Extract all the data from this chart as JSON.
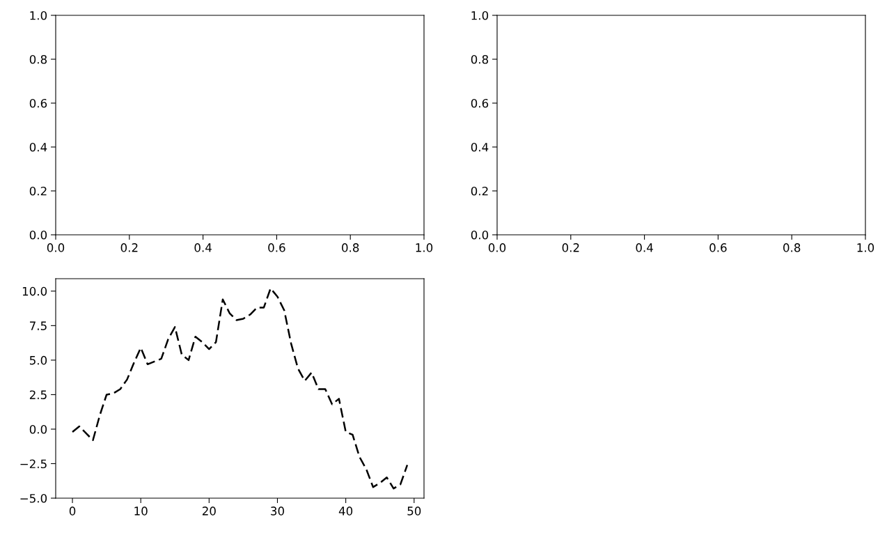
{
  "chart_data": [
    {
      "type": "line",
      "xlim": [
        0,
        1
      ],
      "ylim": [
        0,
        1
      ],
      "xticks": [
        {
          "value": 0,
          "label": "0.0"
        },
        {
          "value": 0.2,
          "label": "0.2"
        },
        {
          "value": 0.4,
          "label": "0.4"
        },
        {
          "value": 0.6,
          "label": "0.6"
        },
        {
          "value": 0.8,
          "label": "0.8"
        },
        {
          "value": 1,
          "label": "1.0"
        }
      ],
      "yticks": [
        {
          "value": 0,
          "label": "0.0"
        },
        {
          "value": 0.2,
          "label": "0.2"
        },
        {
          "value": 0.4,
          "label": "0.4"
        },
        {
          "value": 0.6,
          "label": "0.6"
        },
        {
          "value": 0.8,
          "label": "0.8"
        },
        {
          "value": 1,
          "label": "1.0"
        }
      ],
      "grid": false
    },
    {
      "type": "line",
      "xlim": [
        0,
        1
      ],
      "ylim": [
        0,
        1
      ],
      "xticks": [
        {
          "value": 0,
          "label": "0.0"
        },
        {
          "value": 0.2,
          "label": "0.2"
        },
        {
          "value": 0.4,
          "label": "0.4"
        },
        {
          "value": 0.6,
          "label": "0.6"
        },
        {
          "value": 0.8,
          "label": "0.8"
        },
        {
          "value": 1,
          "label": "1.0"
        }
      ],
      "yticks": [
        {
          "value": 0,
          "label": "0.0"
        },
        {
          "value": 0.2,
          "label": "0.2"
        },
        {
          "value": 0.4,
          "label": "0.4"
        },
        {
          "value": 0.6,
          "label": "0.6"
        },
        {
          "value": 0.8,
          "label": "0.8"
        },
        {
          "value": 1,
          "label": "1.0"
        }
      ],
      "grid": false
    },
    {
      "type": "line",
      "line_style": "dashed",
      "grid": false,
      "x": [
        0,
        1,
        2,
        3,
        4,
        5,
        6,
        7,
        8,
        9,
        10,
        11,
        12,
        13,
        14,
        15,
        16,
        17,
        18,
        19,
        20,
        21,
        22,
        23,
        24,
        25,
        26,
        27,
        28,
        29,
        30,
        31,
        32,
        33,
        34,
        35,
        36,
        37,
        38,
        39,
        40,
        41,
        42,
        43,
        44,
        45,
        46,
        47,
        48,
        49
      ],
      "series": [
        {
          "color": "#000000",
          "values": [
            -0.2,
            0.2,
            -0.3,
            -0.8,
            1.0,
            2.5,
            2.6,
            2.9,
            3.6,
            4.8,
            5.9,
            4.7,
            4.9,
            5.1,
            6.5,
            7.4,
            5.4,
            5.0,
            6.7,
            6.3,
            5.8,
            6.3,
            9.4,
            8.4,
            7.9,
            8.0,
            8.3,
            8.8,
            8.8,
            10.2,
            9.6,
            8.6,
            6.2,
            4.4,
            3.5,
            4.1,
            2.9,
            2.9,
            1.8,
            2.2,
            -0.2,
            -0.4,
            -2.0,
            -2.9,
            -4.2,
            -3.9,
            -3.5,
            -4.3,
            -4.0,
            -2.6
          ]
        }
      ],
      "xlim": [
        -2.45,
        51.45
      ],
      "ylim": [
        -5.0,
        10.9
      ],
      "xticks": [
        0,
        10,
        20,
        30,
        40,
        50
      ],
      "yticks": [
        {
          "value": -5,
          "label": "−5.0"
        },
        {
          "value": -2.5,
          "label": "−2.5"
        },
        {
          "value": 0,
          "label": "0.0"
        },
        {
          "value": 2.5,
          "label": "2.5"
        },
        {
          "value": 5,
          "label": "5.0"
        },
        {
          "value": 7.5,
          "label": "7.5"
        },
        {
          "value": 10,
          "label": "10.0"
        }
      ]
    }
  ]
}
